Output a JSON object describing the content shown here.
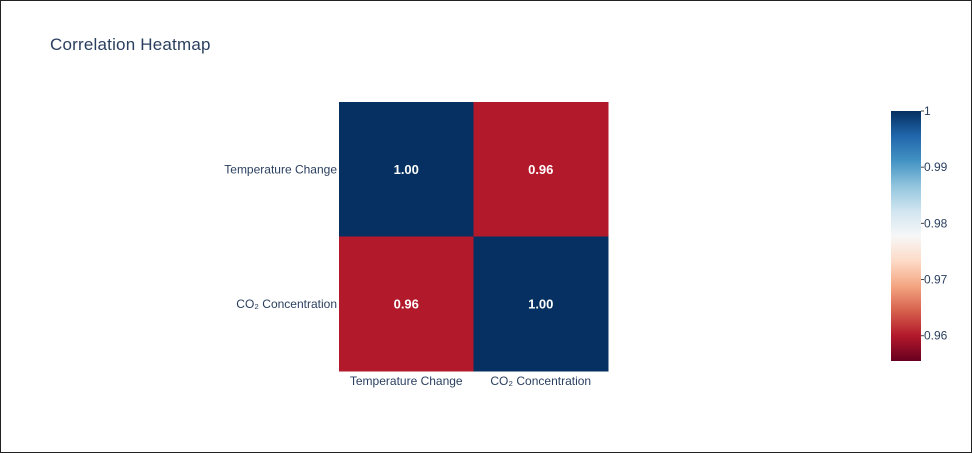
{
  "chart": {
    "title": "Correlation Heatmap"
  },
  "chart_data": {
    "type": "heatmap",
    "title": "Correlation Heatmap",
    "x_categories": [
      "Temperature Change",
      "CO₂ Concentration"
    ],
    "y_categories": [
      "Temperature Change",
      "CO₂ Concentration"
    ],
    "z": [
      [
        1.0,
        0.96
      ],
      [
        0.96,
        1.0
      ]
    ],
    "cell_text": [
      [
        "1.00",
        "0.96"
      ],
      [
        "0.96",
        "1.00"
      ]
    ],
    "colorscale": "RdBu",
    "colorscale_stops": [
      "#67001f",
      "#b2182b",
      "#d6604d",
      "#f4a582",
      "#fddbc7",
      "#f7f7f7",
      "#d1e5f0",
      "#92c5de",
      "#4393c3",
      "#2166ac",
      "#053061"
    ],
    "zmin": 0.9555,
    "zmax": 1.0,
    "colorbar_ticks": [
      0.96,
      0.97,
      0.98,
      0.99,
      1
    ],
    "colorbar_tick_labels": [
      "0.96",
      "0.97",
      "0.98",
      "0.99",
      "1"
    ],
    "legend": "colorbar-right"
  }
}
